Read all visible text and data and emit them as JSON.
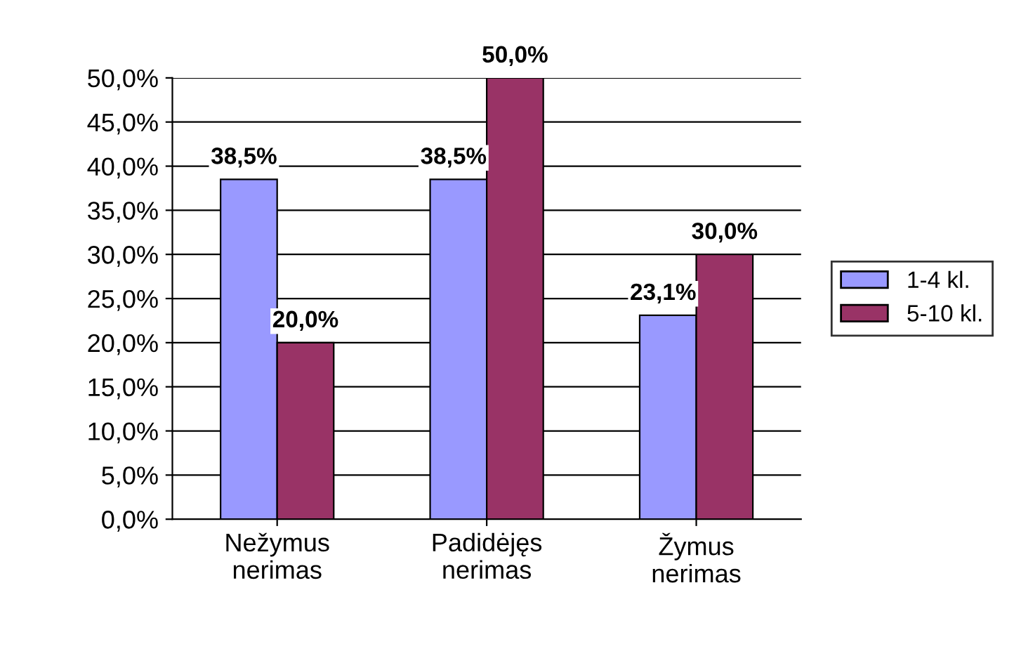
{
  "chart_data": {
    "type": "bar",
    "categories": [
      "Nežymus\nnerimas",
      "Padidėjęs\nnerimas",
      "Žymus\nnerimas"
    ],
    "series": [
      {
        "name": "1-4 kl.",
        "color": "#9999ff",
        "values": [
          38.5,
          38.5,
          23.1
        ],
        "value_labels": [
          "38,5%",
          "38,5%",
          "23,1%"
        ]
      },
      {
        "name": "5-10 kl.",
        "color": "#993366",
        "values": [
          20.0,
          50.0,
          30.0
        ],
        "value_labels": [
          "20,0%",
          "50,0%",
          "30,0%"
        ]
      }
    ],
    "ylim": [
      0,
      50
    ],
    "yticks": [
      {
        "value": 0,
        "label": "0,0%"
      },
      {
        "value": 5,
        "label": "5,0%"
      },
      {
        "value": 10,
        "label": "10,0%"
      },
      {
        "value": 15,
        "label": "15,0%"
      },
      {
        "value": 20,
        "label": "20,0%"
      },
      {
        "value": 25,
        "label": "25,0%"
      },
      {
        "value": 30,
        "label": "30,0%"
      },
      {
        "value": 35,
        "label": "35,0%"
      },
      {
        "value": 40,
        "label": "40,0%"
      },
      {
        "value": 45,
        "label": "45,0%"
      },
      {
        "value": 50,
        "label": "50,0%"
      }
    ],
    "grid": "y",
    "legend": "right"
  }
}
